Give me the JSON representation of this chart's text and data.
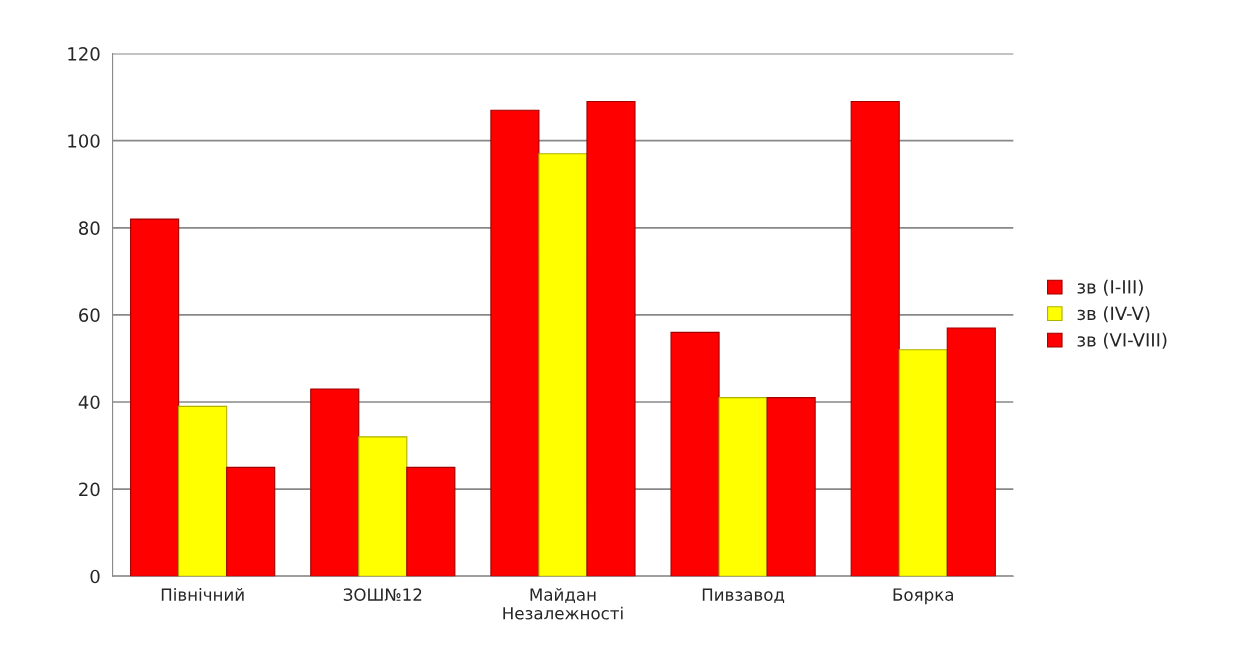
{
  "chart_data": {
    "type": "bar",
    "categories": [
      "Північний",
      "ЗОШ№12",
      "Майдан\nНезалежності",
      "Пивзавод",
      "Боярка"
    ],
    "series": [
      {
        "name": "зв (I-III)",
        "color": "#ff0000",
        "values": [
          82,
          43,
          107,
          56,
          109
        ]
      },
      {
        "name": "зв (IV-V)",
        "color": "#ffff00",
        "values": [
          39,
          32,
          97,
          41,
          52
        ]
      },
      {
        "name": "зв (VI-VIII)",
        "color": "#ff0000",
        "values": [
          25,
          25,
          109,
          41,
          57
        ]
      }
    ],
    "ylim": [
      0,
      120
    ],
    "yticks": [
      0,
      20,
      40,
      60,
      80,
      100,
      120
    ],
    "grid": "y",
    "legend": "right"
  }
}
